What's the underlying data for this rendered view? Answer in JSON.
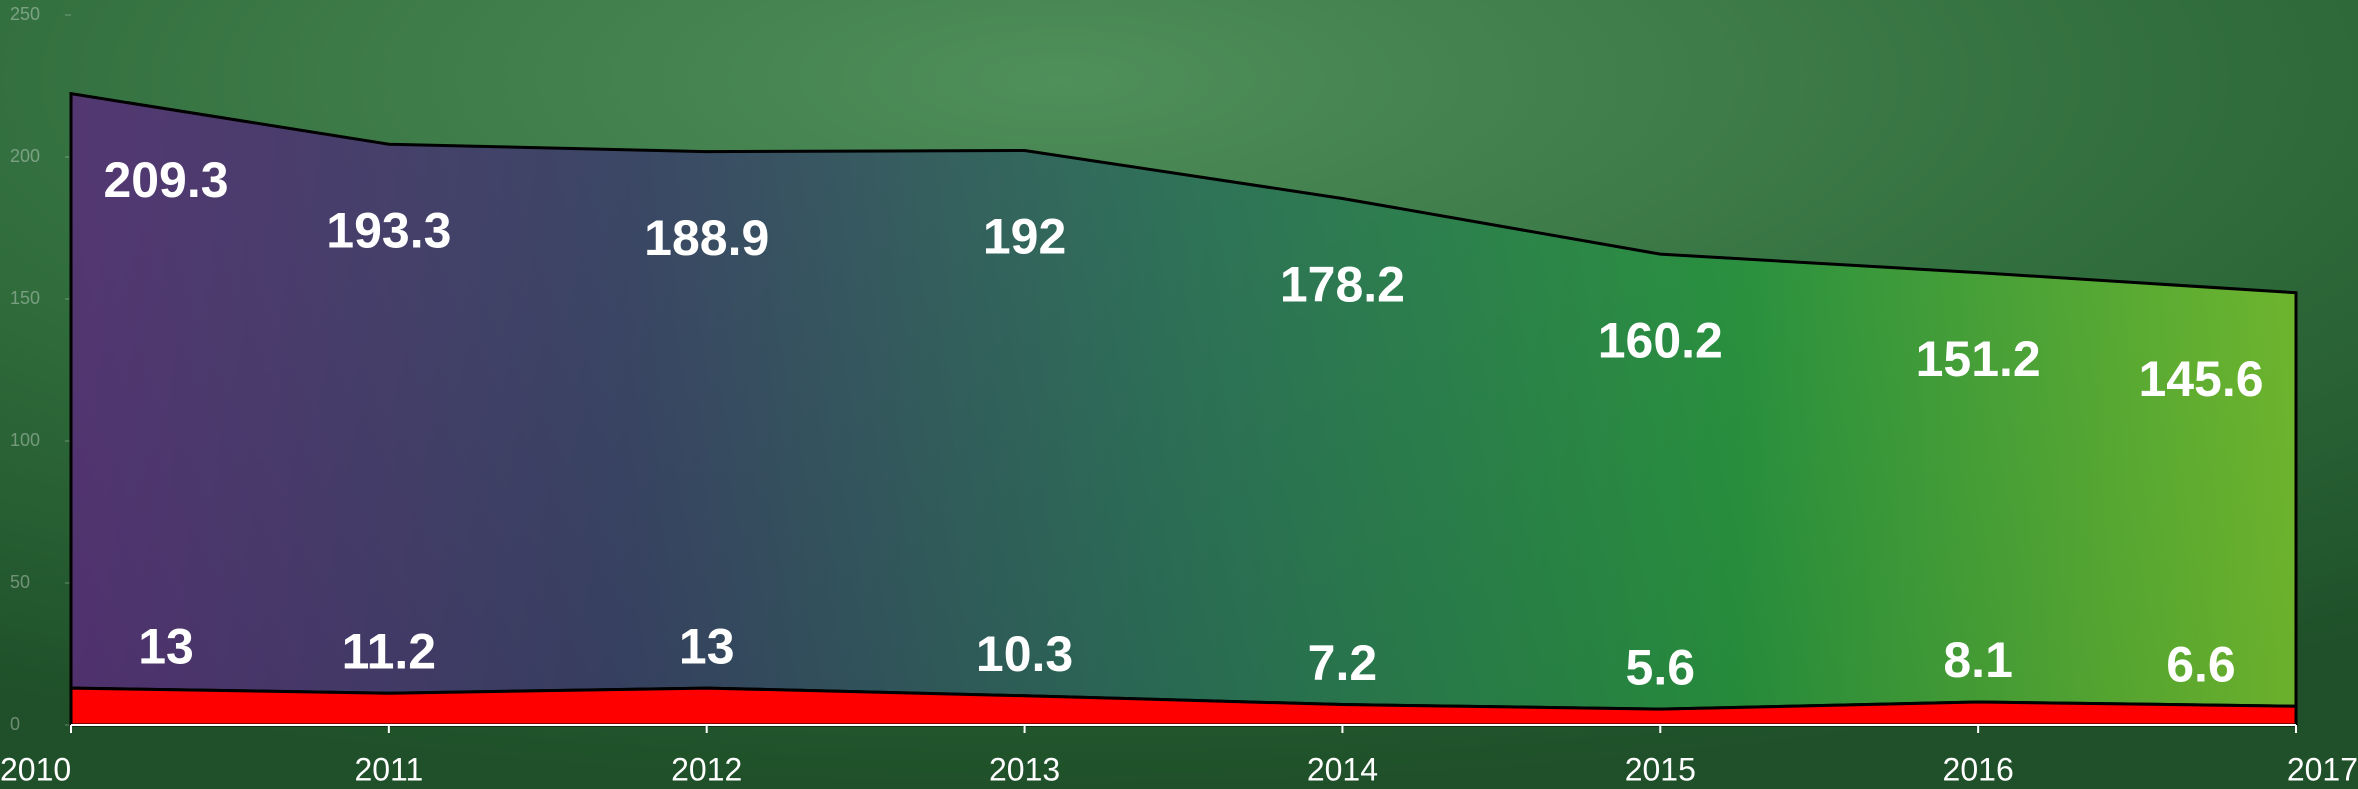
{
  "chart_data": {
    "type": "stacked_area",
    "categories": [
      "2010",
      "2011",
      "2012",
      "2013",
      "2014",
      "2015",
      "2016",
      "2017"
    ],
    "series": [
      {
        "color": "#ff0000",
        "values": [
          13,
          11.2,
          13,
          10.3,
          7.2,
          5.6,
          8.1,
          6.6
        ]
      },
      {
        "color": "#2f7a50",
        "gradient": [
          "#5a2a7c",
          "#3a3a6a",
          "#2a6e5a",
          "#27963e",
          "#7cc62c"
        ],
        "values": [
          209.3,
          193.3,
          188.9,
          192,
          178.2,
          160.2,
          151.2,
          145.6
        ]
      }
    ],
    "ylim": [
      0,
      250
    ],
    "yticks": [
      0,
      50,
      100,
      150,
      200,
      250
    ],
    "grid": false
  }
}
